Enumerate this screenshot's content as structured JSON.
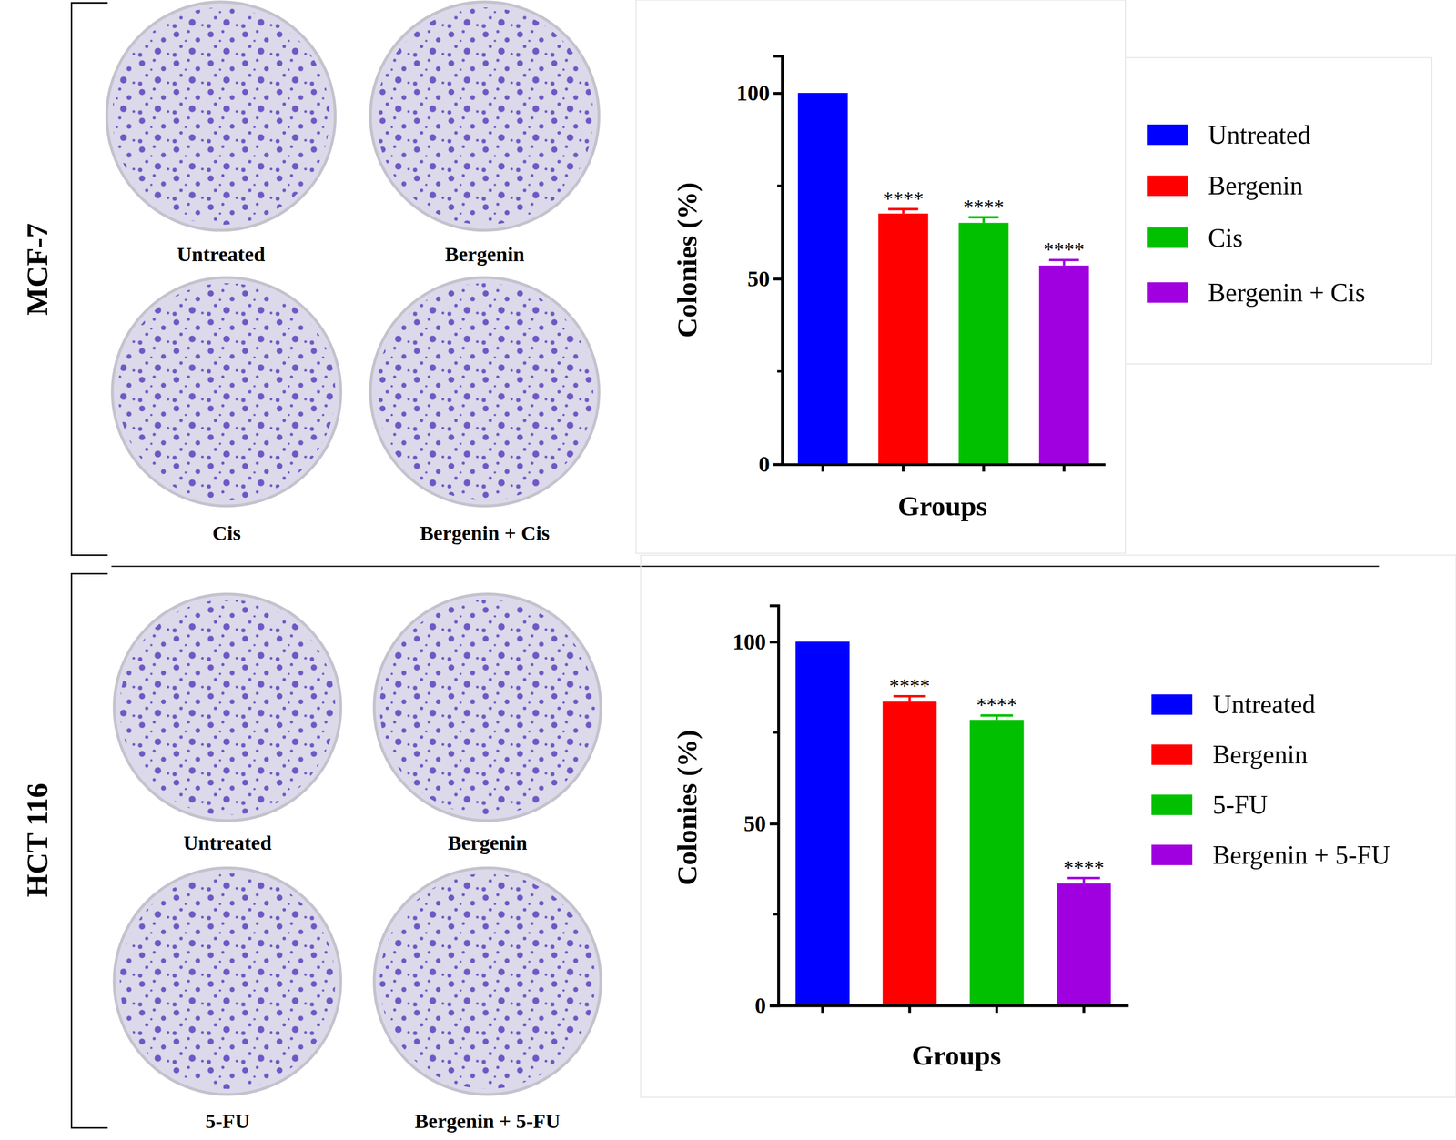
{
  "chart_data": [
    {
      "type": "bar",
      "title": "MCF-7",
      "annotations": [
        "Untreated",
        "Bergenin",
        "Cis",
        "Bergenin + Cis"
      ],
      "x_label": "Groups",
      "y_label": "Colonies (%)",
      "categories": [
        "Untreated",
        "Bergenin",
        "Cis",
        "Bergenin + Cis"
      ],
      "values": [
        100,
        67.5,
        65,
        53.5
      ],
      "errors": [
        0,
        1.2,
        1.5,
        1.5
      ],
      "significance": [
        null,
        "****",
        "****",
        "****"
      ],
      "colors": [
        "#0000ff",
        "#ff0000",
        "#00c000",
        "#a000e0"
      ],
      "ylim": [
        0,
        110
      ],
      "yticks": [
        0,
        50,
        100
      ],
      "legend": "right",
      "tick_labels": "y",
      "grid": false
    },
    {
      "type": "bar",
      "title": "HCT 116",
      "annotations": [
        "Untreated",
        "Bergenin",
        "5-FU",
        "Bergenin + 5-FU"
      ],
      "x_label": "Groups",
      "y_label": "Colonies (%)",
      "categories": [
        "Untreated",
        "Bergenin",
        "5-FU",
        "Bergenin + 5-FU"
      ],
      "values": [
        100,
        83.5,
        78.5,
        33.5
      ],
      "errors": [
        0,
        1.5,
        1.2,
        1.5
      ],
      "significance": [
        null,
        "****",
        "****",
        "****"
      ],
      "colors": [
        "#0000ff",
        "#ff0000",
        "#00c000",
        "#a000e0"
      ],
      "ylim": [
        0,
        110
      ],
      "yticks": [
        0,
        50,
        100
      ],
      "legend": "right",
      "tick_labels": "y",
      "grid": false
    }
  ]
}
